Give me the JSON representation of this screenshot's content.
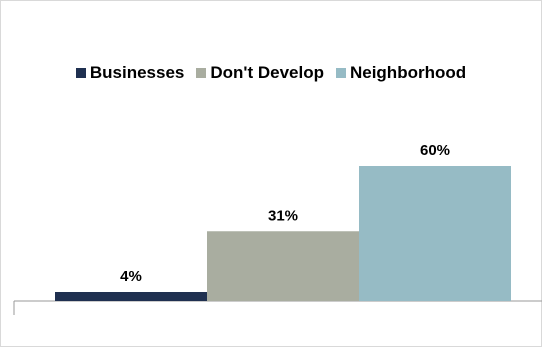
{
  "chart_data": {
    "type": "bar",
    "categories": [
      "Businesses",
      "Don't Develop",
      "Neighborhood"
    ],
    "values": [
      4,
      31,
      60
    ],
    "data_labels": [
      "4%",
      "31%",
      "60%"
    ],
    "colors": [
      "#1f3050",
      "#a9ada0",
      "#96bbc5"
    ],
    "ylim": [
      0,
      70
    ],
    "grid": false,
    "legend": {
      "placement": "top",
      "items": [
        "Businesses",
        "Don't Develop",
        "Neighborhood"
      ]
    }
  }
}
